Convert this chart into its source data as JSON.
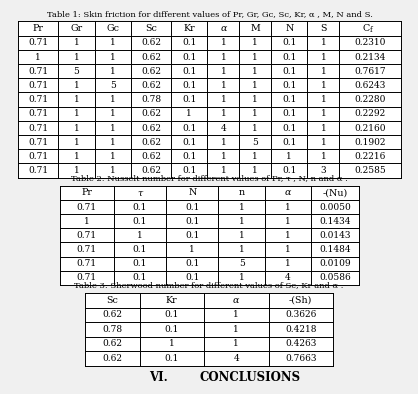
{
  "bg_color": "#f0f0f0",
  "table1_title": "Table 1: Skin friction for different values of Pr, Gr, Gc, Sc, Kr, α , M, N and S.",
  "table1_headers": [
    "Pr",
    "Gr",
    "Gc",
    "Sc",
    "Kr",
    "α",
    "M",
    "N",
    "S",
    "Cf"
  ],
  "table1_data": [
    [
      "0.71",
      "1",
      "1",
      "0.62",
      "0.1",
      "1",
      "1",
      "0.1",
      "1",
      "0.2310"
    ],
    [
      "1",
      "1",
      "1",
      "0.62",
      "0.1",
      "1",
      "1",
      "0.1",
      "1",
      "0.2134"
    ],
    [
      "0.71",
      "5",
      "1",
      "0.62",
      "0.1",
      "1",
      "1",
      "0.1",
      "1",
      "0.7617"
    ],
    [
      "0.71",
      "1",
      "5",
      "0.62",
      "0.1",
      "1",
      "1",
      "0.1",
      "1",
      "0.6243"
    ],
    [
      "0.71",
      "1",
      "1",
      "0.78",
      "0.1",
      "1",
      "1",
      "0.1",
      "1",
      "0.2280"
    ],
    [
      "0.71",
      "1",
      "1",
      "0.62",
      "1",
      "1",
      "1",
      "0.1",
      "1",
      "0.2292"
    ],
    [
      "0.71",
      "1",
      "1",
      "0.62",
      "0.1",
      "4",
      "1",
      "0.1",
      "1",
      "0.2160"
    ],
    [
      "0.71",
      "1",
      "1",
      "0.62",
      "0.1",
      "1",
      "5",
      "0.1",
      "1",
      "0.1902"
    ],
    [
      "0.71",
      "1",
      "1",
      "0.62",
      "0.1",
      "1",
      "1",
      "1",
      "1",
      "0.2216"
    ],
    [
      "0.71",
      "1",
      "1",
      "0.62",
      "0.1",
      "1",
      "1",
      "0.1",
      "3",
      "0.2585"
    ]
  ],
  "table2_title": "Table 2: Nusselt number for different values of Pr, τ , N, n and α .",
  "table2_headers": [
    "Pr",
    "τ",
    "N",
    "n",
    "α",
    "-(Nu)"
  ],
  "table2_data": [
    [
      "0.71",
      "0.1",
      "0.1",
      "1",
      "1",
      "0.0050"
    ],
    [
      "1",
      "0.1",
      "0.1",
      "1",
      "1",
      "0.1434"
    ],
    [
      "0.71",
      "1",
      "0.1",
      "1",
      "1",
      "0.0143"
    ],
    [
      "0.71",
      "0.1",
      "1",
      "1",
      "1",
      "0.1484"
    ],
    [
      "0.71",
      "0.1",
      "0.1",
      "5",
      "1",
      "0.0109"
    ],
    [
      "0.71",
      "0.1",
      "0.1",
      "1",
      "4",
      "0.0586"
    ]
  ],
  "table3_title": "Table 3: Sherwood number for different values of Sc, Kr and α .",
  "table3_headers": [
    "Sc",
    "Kr",
    "α",
    "-(Sh)"
  ],
  "table3_data": [
    [
      "0.62",
      "0.1",
      "1",
      "0.3626"
    ],
    [
      "0.78",
      "0.1",
      "1",
      "0.4218"
    ],
    [
      "0.62",
      "1",
      "1",
      "0.4263"
    ],
    [
      "0.62",
      "0.1",
      "4",
      "0.7663"
    ]
  ],
  "conclusions_label": "VI.",
  "conclusions_text": "CONCLUSIONS"
}
